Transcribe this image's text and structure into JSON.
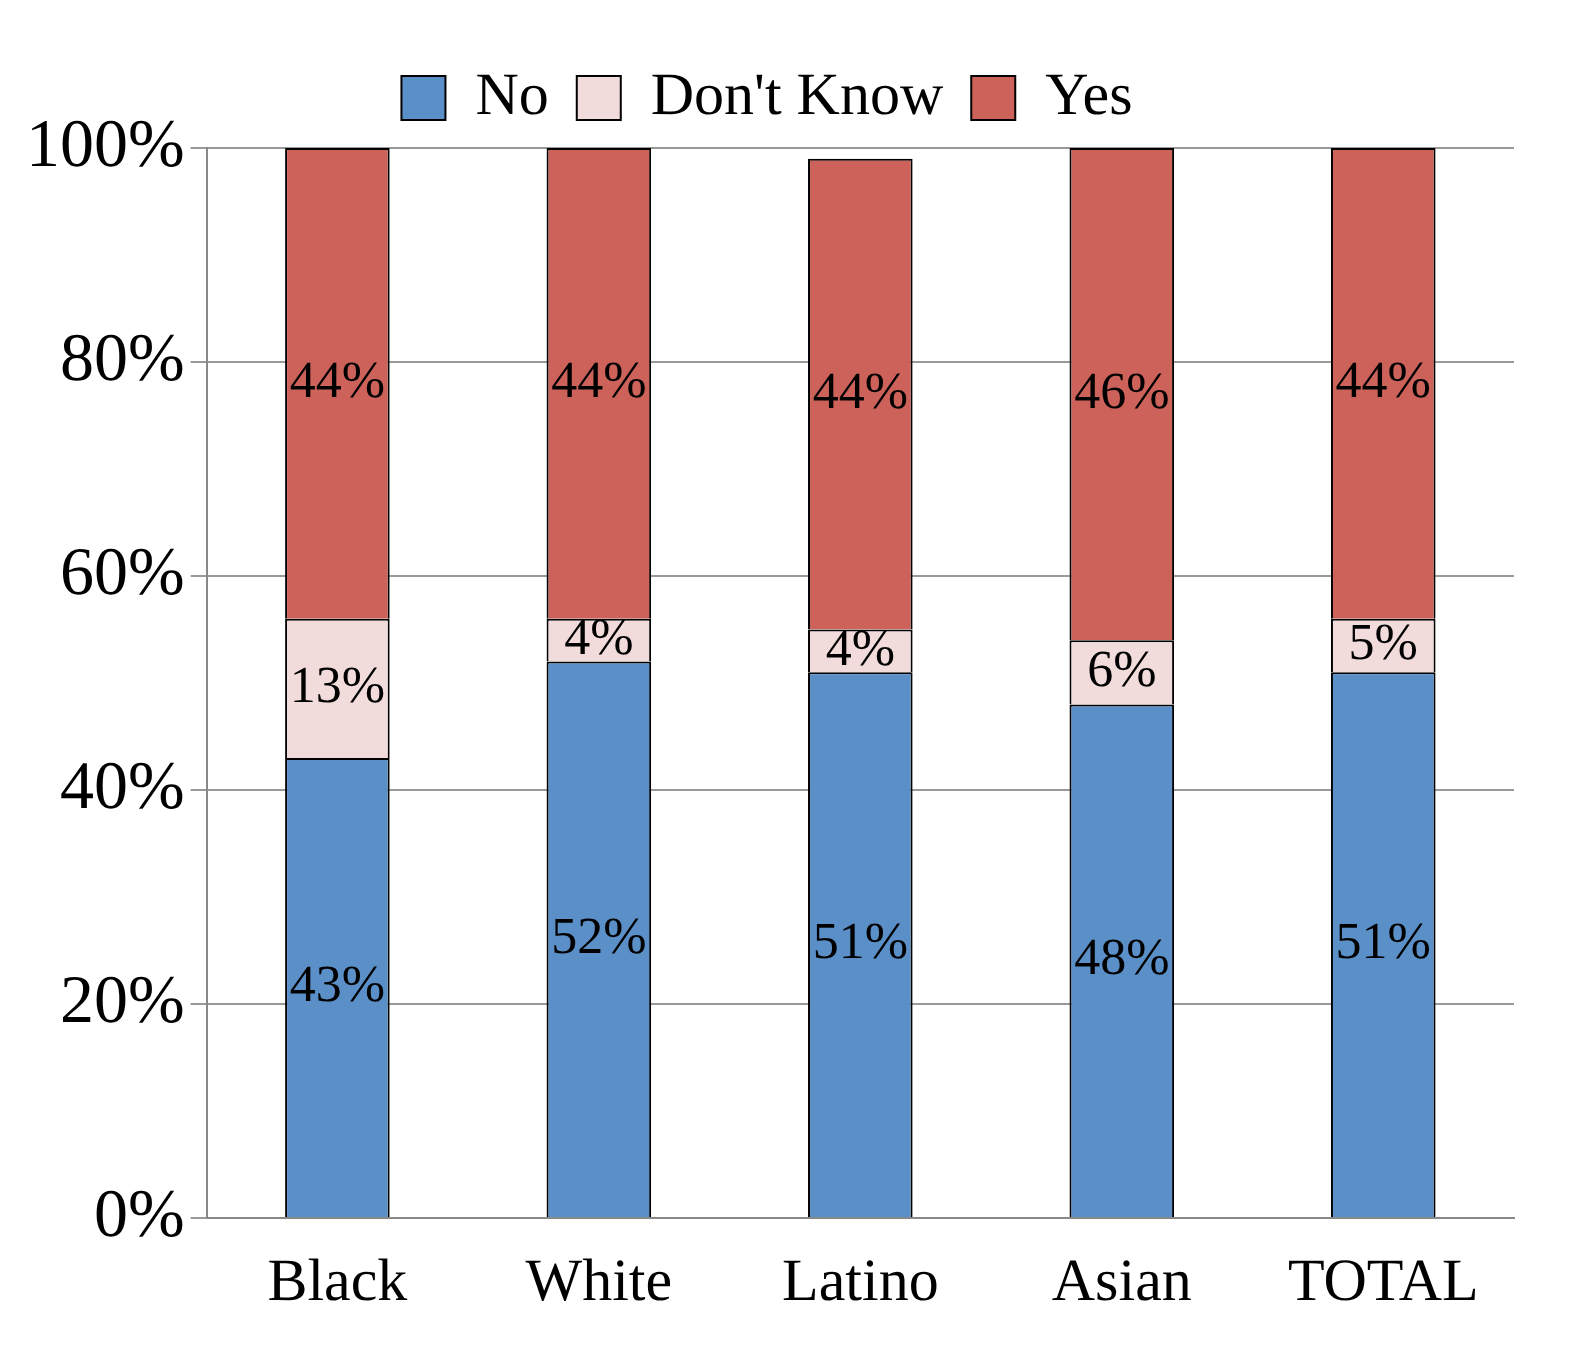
{
  "chart_data": {
    "type": "bar",
    "stacked": true,
    "categories": [
      "Black",
      "White",
      "Latino",
      "Asian",
      "TOTAL"
    ],
    "series": [
      {
        "name": "No",
        "color": "#5b8fc8",
        "values": [
          43,
          52,
          51,
          48,
          51
        ],
        "value_labels": [
          "43%",
          "52%",
          "51%",
          "48%",
          "51%"
        ]
      },
      {
        "name": "Don't Know",
        "color": "#f2dcdb",
        "values": [
          13,
          4,
          4,
          6,
          5
        ],
        "value_labels": [
          "13%",
          "4%",
          "4%",
          "6%",
          "5%"
        ]
      },
      {
        "name": "Yes",
        "color": "#cd625b",
        "values": [
          44,
          44,
          44,
          46,
          44
        ],
        "value_labels": [
          "44%",
          "44%",
          "44%",
          "46%",
          "44%"
        ]
      }
    ],
    "ylim": [
      0,
      100
    ],
    "yticks": [
      {
        "value": 0,
        "label": "0%"
      },
      {
        "value": 20,
        "label": "20%"
      },
      {
        "value": 40,
        "label": "40%"
      },
      {
        "value": 60,
        "label": "60%"
      },
      {
        "value": 80,
        "label": "80%"
      },
      {
        "value": 100,
        "label": "100%"
      }
    ],
    "grid": "y",
    "legend": "top"
  }
}
